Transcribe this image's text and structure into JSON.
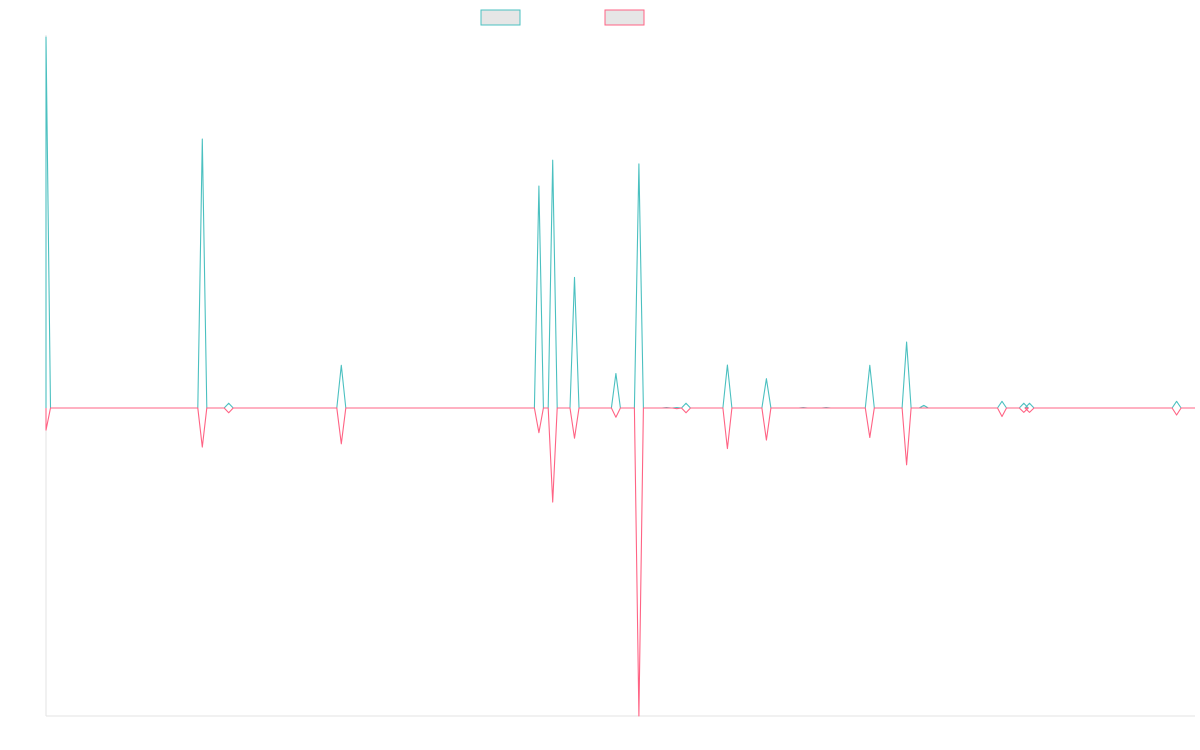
{
  "chart_data": {
    "type": "line",
    "title": "",
    "xlabel": "",
    "ylabel": "",
    "grid": false,
    "legend": {
      "placement": "top-center",
      "entries": [
        {
          "label": "",
          "color": "#4bc0c0"
        },
        {
          "label": "",
          "color": "#ff6384"
        }
      ]
    },
    "ylim": [
      -1.2,
      1.2
    ],
    "xlim": [
      0,
      1000
    ],
    "colors": {
      "series_a": "#4bc0c0",
      "series_b": "#ff6384",
      "legend_fill": "#e6e6e6",
      "axis": "#e3e3e3"
    },
    "series": [
      {
        "color": "#4bc0c0",
        "points": [
          [
            0,
            1.0
          ],
          [
            136,
            0.725
          ],
          [
            159,
            0.013
          ],
          [
            257,
            0.115
          ],
          [
            429,
            0.598
          ],
          [
            441,
            0.668
          ],
          [
            460,
            0.352
          ],
          [
            496,
            0.093
          ],
          [
            516,
            0.658
          ],
          [
            540,
            0.001
          ],
          [
            549,
            0.001
          ],
          [
            557,
            0.013
          ],
          [
            593,
            0.116
          ],
          [
            627,
            0.079
          ],
          [
            659,
            0.001
          ],
          [
            679,
            0.001
          ],
          [
            717,
            0.115
          ],
          [
            749,
            0.178
          ],
          [
            764,
            0.007
          ],
          [
            832,
            0.018
          ],
          [
            851,
            0.013
          ],
          [
            856,
            0.013
          ],
          [
            984,
            0.018
          ]
        ]
      },
      {
        "color": "#ff6384",
        "points": [
          [
            0,
            -0.06
          ],
          [
            136,
            -0.106
          ],
          [
            159,
            -0.013
          ],
          [
            257,
            -0.097
          ],
          [
            429,
            -0.067
          ],
          [
            441,
            -0.255
          ],
          [
            460,
            -0.082
          ],
          [
            496,
            -0.025
          ],
          [
            516,
            -0.835
          ],
          [
            549,
            -0.002
          ],
          [
            557,
            -0.013
          ],
          [
            593,
            -0.11
          ],
          [
            627,
            -0.087
          ],
          [
            717,
            -0.08
          ],
          [
            749,
            -0.154
          ],
          [
            832,
            -0.023
          ],
          [
            851,
            -0.012
          ],
          [
            856,
            -0.012
          ],
          [
            984,
            -0.019
          ]
        ]
      }
    ]
  }
}
